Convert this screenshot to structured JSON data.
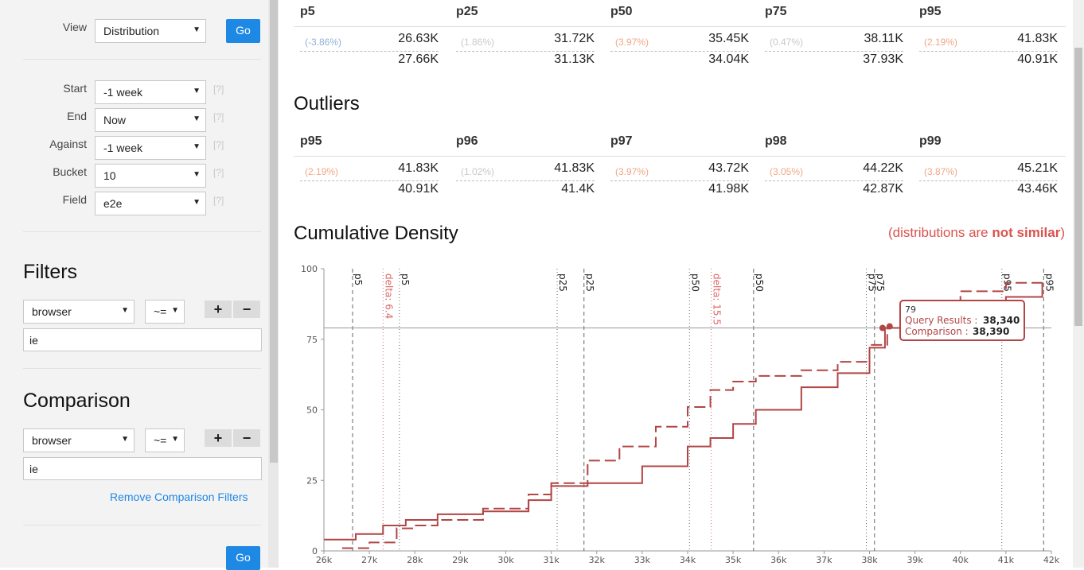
{
  "sidebar": {
    "view": {
      "label": "View",
      "value": "Distribution",
      "go": "Go"
    },
    "fields": [
      {
        "label": "Start",
        "value": "-1 week",
        "hint": "[?]"
      },
      {
        "label": "End",
        "value": "Now",
        "hint": "[?]"
      },
      {
        "label": "Against",
        "value": "-1 week",
        "hint": "[?]"
      },
      {
        "label": "Bucket",
        "value": "10",
        "hint": "[?]"
      },
      {
        "label": "Field",
        "value": "e2e",
        "hint": "[?]"
      }
    ],
    "filters": {
      "title": "Filters",
      "field": "browser",
      "op": "~=",
      "plus": "+",
      "minus": "−",
      "value": "ie"
    },
    "comparison": {
      "title": "Comparison",
      "field": "browser",
      "op": "~=",
      "plus": "+",
      "minus": "−",
      "value": "ie",
      "remove_link": "Remove Comparison Filters"
    },
    "go_bottom": "Go"
  },
  "percentiles": {
    "columns": [
      {
        "name": "p5",
        "delta": "(-3.86%)",
        "delta_color": "#8fb0d6",
        "v1": "26.63K",
        "v2": "27.66K"
      },
      {
        "name": "p25",
        "delta": "(1.86%)",
        "delta_color": "#c9c9c9",
        "v1": "31.72K",
        "v2": "31.13K"
      },
      {
        "name": "p50",
        "delta": "(3.97%)",
        "delta_color": "#f0a887",
        "v1": "35.45K",
        "v2": "34.04K"
      },
      {
        "name": "p75",
        "delta": "(0.47%)",
        "delta_color": "#c9c9c9",
        "v1": "38.11K",
        "v2": "37.93K"
      },
      {
        "name": "p95",
        "delta": "(2.19%)",
        "delta_color": "#f0a887",
        "v1": "41.83K",
        "v2": "40.91K"
      }
    ]
  },
  "outliers": {
    "title": "Outliers",
    "columns": [
      {
        "name": "p95",
        "delta": "(2.19%)",
        "delta_color": "#f0a887",
        "v1": "41.83K",
        "v2": "40.91K"
      },
      {
        "name": "p96",
        "delta": "(1.02%)",
        "delta_color": "#c9c9c9",
        "v1": "41.83K",
        "v2": "41.4K"
      },
      {
        "name": "p97",
        "delta": "(3.97%)",
        "delta_color": "#f0a887",
        "v1": "43.72K",
        "v2": "41.98K"
      },
      {
        "name": "p98",
        "delta": "(3.05%)",
        "delta_color": "#f0a887",
        "v1": "44.22K",
        "v2": "42.87K"
      },
      {
        "name": "p99",
        "delta": "(3.87%)",
        "delta_color": "#f0a887",
        "v1": "45.21K",
        "v2": "43.46K"
      }
    ]
  },
  "cdf": {
    "title": "Cumulative Density",
    "similarity_prefix": "(distributions are ",
    "similarity_bold": "not similar",
    "similarity_suffix": ")"
  },
  "chart_data": {
    "type": "line",
    "title": "Cumulative Density",
    "xlim": [
      26000,
      42000
    ],
    "ylim": [
      0,
      100
    ],
    "x_ticks": [
      "26k",
      "27k",
      "28k",
      "29k",
      "30k",
      "31k",
      "32k",
      "33k",
      "34k",
      "35k",
      "36k",
      "37k",
      "38k",
      "39k",
      "40k",
      "41k",
      "42k"
    ],
    "y_ticks": [
      0,
      25,
      50,
      75,
      100
    ],
    "series": [
      {
        "name": "Query Results",
        "color": "#b24545",
        "dash": "solid",
        "points": [
          [
            26000,
            4
          ],
          [
            26700,
            6
          ],
          [
            27300,
            9
          ],
          [
            27800,
            11
          ],
          [
            28500,
            13
          ],
          [
            29500,
            14
          ],
          [
            30500,
            18
          ],
          [
            31000,
            23
          ],
          [
            31800,
            24
          ],
          [
            33000,
            30
          ],
          [
            34000,
            37
          ],
          [
            34500,
            40
          ],
          [
            35000,
            45
          ],
          [
            35500,
            50
          ],
          [
            36500,
            58
          ],
          [
            37300,
            63
          ],
          [
            38000,
            72
          ],
          [
            38340,
            79
          ],
          [
            39000,
            84
          ],
          [
            40000,
            87
          ],
          [
            41000,
            90
          ],
          [
            41800,
            95
          ]
        ]
      },
      {
        "name": "Comparison",
        "color": "#b24545",
        "dash": "dashed",
        "points": [
          [
            26400,
            1
          ],
          [
            27000,
            3
          ],
          [
            27600,
            8
          ],
          [
            28000,
            9
          ],
          [
            28500,
            11
          ],
          [
            29500,
            15
          ],
          [
            30500,
            20
          ],
          [
            31000,
            24
          ],
          [
            31800,
            32
          ],
          [
            32500,
            37
          ],
          [
            33300,
            44
          ],
          [
            34000,
            51
          ],
          [
            34500,
            57
          ],
          [
            35000,
            60
          ],
          [
            35500,
            62
          ],
          [
            36500,
            64
          ],
          [
            37300,
            67
          ],
          [
            38000,
            73
          ],
          [
            38390,
            79
          ],
          [
            39000,
            84
          ],
          [
            40000,
            92
          ],
          [
            41000,
            95
          ],
          [
            41800,
            96
          ]
        ]
      }
    ],
    "markers": [
      {
        "label": "p5",
        "x": 26630,
        "style": "dash"
      },
      {
        "label": "p5",
        "x": 27660,
        "style": "dot"
      },
      {
        "label": "delta: 6.4",
        "x": 27300,
        "style": "dot-red"
      },
      {
        "label": "p25",
        "x": 31130,
        "style": "dot"
      },
      {
        "label": "p25",
        "x": 31720,
        "style": "dash"
      },
      {
        "label": "p50",
        "x": 34040,
        "style": "dot"
      },
      {
        "label": "delta: 15.5",
        "x": 34520,
        "style": "dot-red"
      },
      {
        "label": "p50",
        "x": 35450,
        "style": "dash"
      },
      {
        "label": "p75",
        "x": 37930,
        "style": "dot"
      },
      {
        "label": "p75",
        "x": 38110,
        "style": "dash"
      },
      {
        "label": "p95",
        "x": 40910,
        "style": "dot"
      },
      {
        "label": "p95",
        "x": 41830,
        "style": "dash"
      }
    ],
    "crosshair_y": 79,
    "tooltip": {
      "y": "79",
      "q_label": "Query Results :",
      "q_value": "38,340",
      "c_label": "Comparison :",
      "c_value": "38,390"
    }
  }
}
